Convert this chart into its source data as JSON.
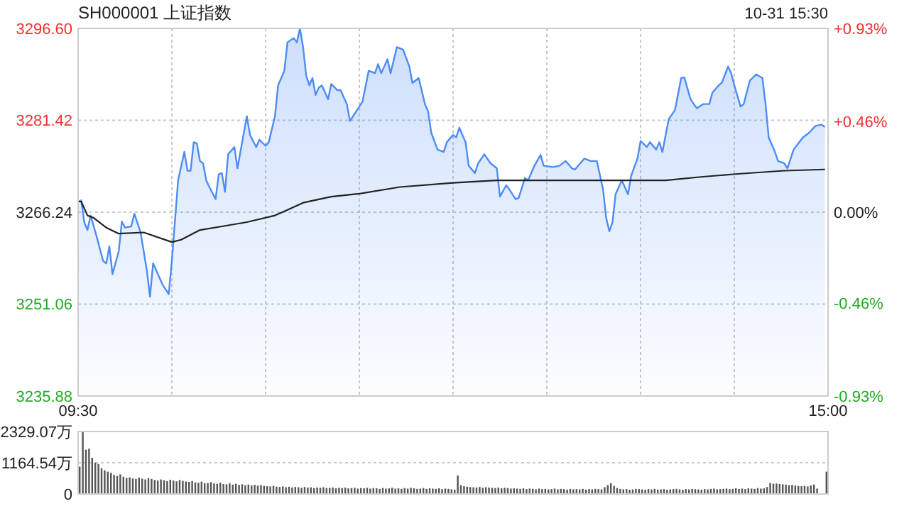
{
  "chart_data": [
    {
      "type": "area",
      "title": "SH000001 上证指数",
      "annotations": [
        "10-31 15:30"
      ],
      "categories": [
        "09:30",
        null,
        null,
        null,
        null,
        null,
        null,
        null,
        null,
        null,
        null,
        null,
        null,
        null,
        null,
        null,
        null,
        null,
        null,
        null,
        null,
        null,
        null,
        null,
        null,
        null,
        null,
        null,
        null,
        null,
        null,
        null,
        null,
        null,
        null,
        null,
        null,
        null,
        null,
        null,
        null,
        null,
        null,
        null,
        null,
        null,
        null,
        null,
        null,
        null,
        null,
        null,
        null,
        null,
        null,
        null,
        null,
        null,
        null,
        null,
        null,
        null,
        null,
        null,
        null,
        null,
        null,
        null,
        null,
        null,
        null,
        null,
        null,
        null,
        null,
        null,
        null,
        null,
        null,
        null,
        null,
        null,
        null,
        null,
        null,
        null,
        null,
        null,
        null,
        null,
        null,
        null,
        null,
        null,
        null,
        null,
        null,
        null,
        null,
        null,
        null,
        null,
        null,
        null,
        null,
        null,
        null,
        null,
        null,
        null,
        null,
        null,
        null,
        null,
        null,
        null,
        null,
        null,
        null,
        null,
        null,
        null,
        null,
        null,
        null,
        null,
        null,
        null,
        null,
        null,
        null,
        null,
        null,
        null,
        null,
        null,
        null,
        null,
        null,
        null,
        null,
        null,
        null,
        null,
        null,
        null,
        null,
        null,
        null,
        null,
        null,
        null,
        null,
        null,
        null,
        null,
        null,
        null,
        null,
        null,
        null,
        null,
        null,
        null,
        null,
        null,
        null,
        null,
        null,
        null,
        null,
        null,
        null,
        null,
        null,
        null,
        null,
        null,
        null,
        null,
        null,
        null,
        null,
        null,
        null,
        null,
        null,
        null,
        null,
        null,
        null,
        null,
        null,
        null,
        null,
        null,
        null,
        null,
        null,
        null,
        null,
        null,
        null,
        null,
        null,
        null,
        null,
        null,
        null,
        null,
        null,
        null,
        null,
        null,
        null,
        null,
        null,
        null,
        null,
        null,
        null,
        null,
        null,
        null,
        null,
        null,
        null,
        null,
        null,
        null,
        null,
        null,
        null,
        null,
        null,
        null,
        null,
        null,
        null,
        null,
        "15:00"
      ],
      "ylim": [
        3235.88,
        3296.6
      ],
      "yticks": [
        {
          "value": 3235.88,
          "label": "3235.88"
        },
        {
          "value": 3251.06,
          "label": "3251.06"
        },
        {
          "value": 3266.24,
          "label": "3266.24"
        },
        {
          "value": 3281.42,
          "label": "3281.42"
        },
        {
          "value": 3296.6,
          "label": "3296.60"
        }
      ],
      "y2lim": [
        -0.93,
        0.93
      ],
      "y2ticks": [
        {
          "value": -0.93,
          "label": "-0.93%"
        },
        {
          "value": -0.46,
          "label": "-0.46%"
        },
        {
          "value": 0,
          "label": "0.00%"
        },
        {
          "value": 0.46,
          "label": "+0.46%"
        },
        {
          "value": 0.93,
          "label": "+0.93%"
        }
      ],
      "grid": true,
      "series": [
        {
          "color": "#4d8cf5",
          "values": [
            3268.0,
            3268.2,
            3264.5,
            3263.3,
            3265.7,
            null,
            3262.1,
            null,
            3258.2,
            3257.8,
            3260.6,
            3256.0,
            null,
            3259.8,
            3264.7,
            3263.7,
            null,
            3263.9,
            3266.0,
            null,
            3262.9,
            null,
            3256.6,
            3252.3,
            3257.8,
            null,
            null,
            3254.3,
            3253.5,
            3252.7,
            3258.2,
            null,
            3271.5,
            null,
            3276.2,
            3273.1,
            3273.1,
            3277.8,
            3277.6,
            3274.7,
            3274.3,
            3271.5,
            3270.4,
            null,
            3268.4,
            3272.5,
            3272.7,
            3269.6,
            3275.8,
            null,
            3277.0,
            3273.5,
            null,
            null,
            3282.1,
            3279.0,
            null,
            3277.0,
            3278.2,
            null,
            3277.2,
            3277.8,
            null,
            3282.1,
            3287.2,
            null,
            3289.6,
            3294.3,
            null,
            3295.0,
            3294.3,
            3296.6,
            3293.5,
            3288.8,
            3287.2,
            3288.4,
            3285.6,
            3286.8,
            3287.2,
            null,
            3284.9,
            3287.4,
            null,
            3286.4,
            3286.4,
            null,
            3284.1,
            3281.3,
            null,
            null,
            3283.7,
            3284.5,
            null,
            3289.6,
            null,
            3289.2,
            3290.7,
            3289.2,
            null,
            3291.5,
            3289.2,
            null,
            3293.5,
            null,
            3293.1,
            null,
            3290.3,
            3287.6,
            null,
            3288.4,
            null,
            3284.1,
            3282.9,
            3279.4,
            null,
            3276.6,
            null,
            3276.2,
            3277.8,
            null,
            3279.0,
            3278.6,
            3280.2,
            null,
            3277.8,
            3273.9,
            null,
            3272.7,
            3274.3,
            null,
            3275.8,
            null,
            3274.3,
            null,
            3273.5,
            3268.8,
            null,
            3270.7,
            3270.0,
            null,
            3268.4,
            3268.6,
            null,
            3271.9,
            3271.5,
            null,
            3273.9,
            null,
            3275.7,
            3273.9,
            null,
            null,
            3273.7,
            null,
            3273.9,
            null,
            3274.7,
            null,
            3273.5,
            3273.3,
            null,
            null,
            3275.1,
            null,
            3274.7,
            null,
            3274.7,
            null,
            3270.0,
            3265.3,
            3263.1,
            3264.5,
            3269.2,
            null,
            3271.5,
            null,
            3269.2,
            3272.3,
            null,
            3275.1,
            3278.0,
            null,
            3277.0,
            3277.8,
            null,
            3276.6,
            3277.8,
            3276.2,
            null,
            3281.6,
            null,
            3283.1,
            null,
            3288.4,
            3288.5,
            null,
            3284.9,
            null,
            3283.4,
            null,
            3284.1,
            null,
            3284.1,
            3286.0,
            null,
            3287.2,
            3287.6,
            null,
            3290.3,
            3289.2,
            3287.2,
            null,
            3283.7,
            3284.1,
            null,
            3288.0,
            null,
            3289.0,
            null,
            3288.4,
            3284.1,
            3278.6,
            null,
            3276.2,
            3274.7,
            null,
            3274.3,
            3273.5,
            null,
            3276.6,
            null,
            null,
            3278.6,
            null,
            3279.4,
            null,
            3280.5,
            null,
            3280.7,
            3280.3,
            null
          ]
        },
        {
          "type": "line",
          "color": "#222222",
          "values": [
            3268.0,
            3268.0,
            null,
            3265.7,
            null,
            3265.3,
            null,
            null,
            null,
            3263.7,
            null,
            null,
            null,
            3262.7,
            null,
            null,
            null,
            null,
            null,
            null,
            null,
            3262.9,
            null,
            null,
            null,
            null,
            null,
            null,
            null,
            null,
            3261.3,
            null,
            null,
            3261.7,
            null,
            null,
            null,
            null,
            null,
            3263.3,
            null,
            null,
            null,
            null,
            null,
            null,
            3263.9,
            null,
            null,
            null,
            null,
            null,
            null,
            null,
            3264.6,
            null,
            null,
            null,
            null,
            null,
            null,
            null,
            null,
            3265.7,
            null,
            null,
            3266.4,
            null,
            null,
            null,
            null,
            null,
            3267.8,
            null,
            null,
            null,
            null,
            null,
            null,
            null,
            null,
            3268.8,
            null,
            null,
            null,
            null,
            null,
            null,
            null,
            null,
            3269.3,
            null,
            null,
            null,
            null,
            null,
            null,
            null,
            null,
            null,
            null,
            null,
            null,
            3270.4,
            null,
            null,
            null,
            null,
            null,
            null,
            null,
            null,
            null,
            null,
            null,
            null,
            null,
            null,
            null,
            null,
            3271.1,
            null,
            null,
            null,
            null,
            null,
            null,
            null,
            null,
            null,
            null,
            null,
            null,
            null,
            3271.5,
            null,
            null,
            null,
            null,
            null,
            null,
            null,
            null,
            null,
            null,
            null,
            3271.5,
            null,
            null,
            null,
            null,
            null,
            null,
            null,
            null,
            null,
            null,
            null,
            null,
            null,
            null,
            3271.5,
            null,
            null,
            null,
            null,
            null,
            null,
            null,
            null,
            null,
            null,
            null,
            null,
            null,
            null,
            3271.5,
            null,
            null,
            null,
            null,
            null,
            null,
            null,
            null,
            null,
            null,
            null,
            3271.5,
            null,
            null,
            null,
            null,
            null,
            null,
            null,
            null,
            null,
            null,
            null,
            3272.1,
            null,
            null,
            null,
            null,
            null,
            null,
            null,
            null,
            null,
            null,
            null,
            3272.6,
            null,
            null,
            null,
            null,
            null,
            null,
            null,
            null,
            null,
            null,
            null,
            null,
            null,
            3273.1,
            null,
            null,
            null,
            null,
            null,
            null,
            null,
            null,
            null,
            null,
            null,
            null,
            3273.3,
            null
          ]
        }
      ]
    },
    {
      "type": "bar",
      "tick_labels": "y",
      "grid": "y",
      "ylim": [
        0,
        2329.07
      ],
      "yticks": [
        0,
        {
          "value": 1164.54,
          "label": "1164.54万"
        },
        {
          "value": 2329.07,
          "label": "2329.07万"
        }
      ],
      "categories": [
        null,
        null,
        null,
        null,
        null,
        null,
        null,
        null,
        null,
        null,
        null,
        null,
        null,
        null,
        null,
        null,
        null,
        null,
        null,
        null,
        null,
        null,
        null,
        null,
        null,
        null,
        null,
        null,
        null,
        null,
        null,
        null,
        null,
        null,
        null,
        null,
        null,
        null,
        null,
        null,
        null,
        null,
        null,
        null,
        null,
        null,
        null,
        null,
        null,
        null,
        null,
        null,
        null,
        null,
        null,
        null,
        null,
        null,
        null,
        null,
        null,
        null,
        null,
        null,
        null,
        null,
        null,
        null,
        null,
        null,
        null,
        null,
        null,
        null,
        null,
        null,
        null,
        null,
        null,
        null,
        null,
        null,
        null,
        null,
        null,
        null,
        null,
        null,
        null,
        null,
        null,
        null,
        null,
        null,
        null,
        null,
        null,
        null,
        null,
        null,
        null,
        null,
        null,
        null,
        null,
        null,
        null,
        null,
        null,
        null,
        null,
        null,
        null,
        null,
        null,
        null,
        null,
        null,
        null,
        null,
        null,
        null,
        null,
        null,
        null,
        null,
        null,
        null,
        null,
        null,
        null,
        null,
        null,
        null,
        null,
        null,
        null,
        null,
        null,
        null,
        null,
        null,
        null,
        null,
        null,
        null,
        null,
        null,
        null,
        null,
        null,
        null,
        null,
        null,
        null,
        null,
        null,
        null,
        null,
        null,
        null,
        null,
        null,
        null,
        null,
        null,
        null,
        null,
        null,
        null,
        null,
        null,
        null,
        null,
        null,
        null,
        null,
        null,
        null,
        null,
        null,
        null,
        null,
        null,
        null,
        null,
        null,
        null,
        null,
        null,
        null,
        null,
        null,
        null,
        null,
        null,
        null,
        null,
        null,
        null,
        null,
        null,
        null,
        null,
        null,
        null,
        null,
        null,
        null,
        null,
        null,
        null,
        null,
        null,
        null,
        null,
        null,
        null,
        null,
        null,
        null,
        null,
        null,
        null,
        null,
        null,
        null,
        null,
        null,
        null,
        null,
        null,
        null,
        null,
        null,
        null,
        null,
        null,
        null,
        null
      ],
      "series": [
        {
          "color": "#555555",
          "values": [
            1020,
            2320,
            1650,
            1690,
            1350,
            1170,
            1120,
            960,
            880,
            830,
            790,
            710,
            670,
            730,
            640,
            600,
            620,
            580,
            560,
            610,
            570,
            540,
            590,
            560,
            520,
            500,
            540,
            510,
            480,
            530,
            500,
            470,
            520,
            490,
            460,
            450,
            480,
            430,
            420,
            460,
            400,
            410,
            440,
            390,
            380,
            420,
            370,
            360,
            400,
            350,
            380,
            340,
            360,
            330,
            350,
            320,
            340,
            310,
            330,
            300,
            290,
            280,
            300,
            270,
            260,
            280,
            250,
            270,
            240,
            260,
            250,
            230,
            260,
            240,
            250,
            220,
            240,
            230,
            250,
            220,
            230,
            240,
            210,
            230,
            220,
            240,
            210,
            220,
            230,
            200,
            220,
            210,
            230,
            200,
            220,
            210,
            190,
            220,
            200,
            210,
            230,
            200,
            210,
            190,
            220,
            200,
            230,
            210,
            190,
            200,
            220,
            190,
            210,
            200,
            190,
            210,
            180,
            200,
            190,
            170,
            160,
            690,
            330,
            290,
            270,
            260,
            250,
            240,
            260,
            230,
            250,
            240,
            230,
            220,
            240,
            210,
            230,
            220,
            200,
            210,
            200,
            190,
            210,
            180,
            200,
            190,
            170,
            200,
            180,
            190,
            170,
            180,
            200,
            170,
            190,
            180,
            160,
            190,
            170,
            180,
            170,
            190,
            160,
            180,
            170,
            190,
            180,
            170,
            250,
            330,
            400,
            300,
            220,
            190,
            170,
            180,
            160,
            170,
            190,
            180,
            170,
            160,
            180,
            170,
            190,
            160,
            170,
            180,
            160,
            170,
            180,
            190,
            170,
            160,
            180,
            170,
            190,
            180,
            170,
            160,
            180,
            170,
            190,
            200,
            170,
            180,
            190,
            200,
            180,
            190,
            210,
            190,
            200,
            180,
            210,
            200,
            190,
            220,
            200,
            210,
            260,
            410,
            380,
            390,
            370,
            360,
            350,
            330,
            340,
            310,
            300,
            290,
            300,
            280,
            320,
            350,
            200,
            null,
            null,
            830
          ]
        }
      ]
    }
  ]
}
